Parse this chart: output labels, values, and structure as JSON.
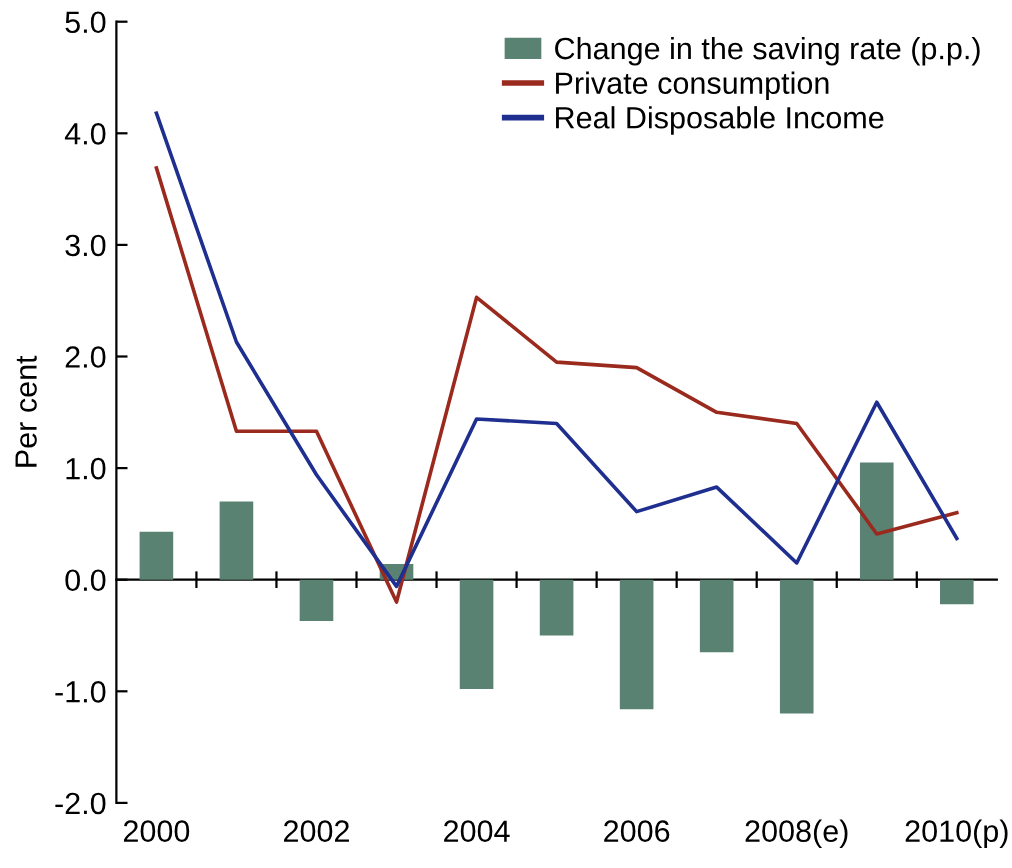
{
  "chart_data": {
    "type": "bar",
    "ylabel": "Per cent",
    "categories": [
      "2000",
      null,
      "2002",
      null,
      "2004",
      null,
      "2006",
      null,
      "2008(e)",
      null,
      "2010(p)"
    ],
    "series": [
      {
        "name": "Change in the saving rate (p.p.)",
        "color": "#5a8272",
        "values": [
          0.43,
          0.7,
          -0.37,
          0.14,
          -0.98,
          -0.5,
          -1.16,
          -0.65,
          -1.2,
          1.05,
          -0.22
        ]
      },
      {
        "name": "Private consumption",
        "type": "line",
        "color": "#9b2a1e",
        "values": [
          3.69,
          1.33,
          1.33,
          -0.2,
          2.53,
          1.95,
          1.9,
          1.5,
          1.4,
          0.41,
          0.6
        ]
      },
      {
        "name": "Real Disposable Income",
        "type": "line",
        "color": "#1f2f8f",
        "values": [
          4.18,
          2.13,
          0.94,
          -0.06,
          1.44,
          1.4,
          0.61,
          0.83,
          0.15,
          1.59,
          0.37
        ]
      }
    ],
    "ylim": [
      -2.0,
      5.0
    ],
    "yticks": [
      {
        "value": -2,
        "label": "-2.0"
      },
      {
        "value": -1,
        "label": "-1.0"
      },
      {
        "value": 0,
        "label": "0.0"
      },
      {
        "value": 1,
        "label": "1.0"
      },
      {
        "value": 2,
        "label": "2.0"
      },
      {
        "value": 3,
        "label": "3.0"
      },
      {
        "value": 4,
        "label": "4.0"
      },
      {
        "value": 5,
        "label": "5.0"
      }
    ],
    "legend": "top right",
    "marker": "none",
    "line_style": "solid"
  }
}
